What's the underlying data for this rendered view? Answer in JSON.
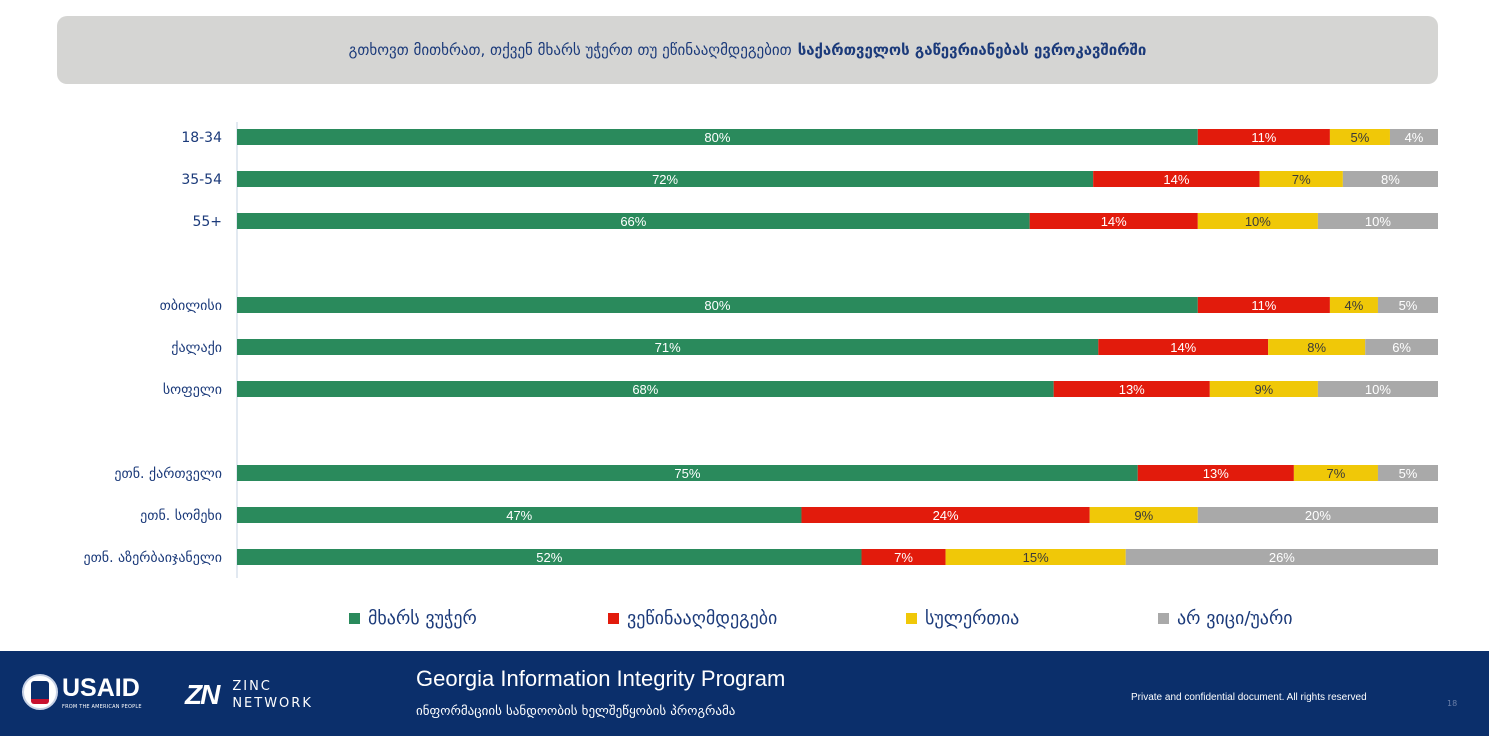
{
  "title": {
    "regular": "გთხოვთ მითხრათ, თქვენ მხარს უჭერთ თუ ეწინააღმდეგებით",
    "bold": "საქართველოს გაწევრიანებას ევროკავშირში"
  },
  "chart_data": {
    "type": "bar",
    "orientation": "horizontal-stacked-100",
    "categories": [
      "18-34",
      "35-54",
      "55+",
      "თბილისი",
      "ქალაქი",
      "სოფელი",
      "ეთნ. ქართველი",
      "ეთნ. სომეხი",
      "ეთნ. აზერბაიჯანელი"
    ],
    "groups": [
      [
        0,
        1,
        2
      ],
      [
        3,
        4,
        5
      ],
      [
        6,
        7,
        8
      ]
    ],
    "series": [
      {
        "name": "მხარს ვუჭერ",
        "color": "#2a8a5c",
        "values": [
          80,
          72,
          66,
          80,
          71,
          68,
          75,
          47,
          52
        ]
      },
      {
        "name": "ვეწინააღმდეგები",
        "color": "#e21b0c",
        "values": [
          11,
          14,
          14,
          11,
          14,
          13,
          13,
          24,
          7
        ]
      },
      {
        "name": "სულერთია",
        "color": "#f0c808",
        "values": [
          5,
          7,
          10,
          4,
          8,
          9,
          7,
          9,
          15
        ]
      },
      {
        "name": "არ ვიცი/უარი",
        "color": "#a9a9a9",
        "values": [
          4,
          8,
          10,
          5,
          6,
          10,
          5,
          20,
          26
        ]
      }
    ],
    "value_suffix": "%",
    "legend_position": "bottom"
  },
  "footer": {
    "usaid": "USAID",
    "usaid_tagline": "FROM THE AMERICAN PEOPLE",
    "zinc_line1": "ZINC",
    "zinc_line2": "NETWORK",
    "program_en": "Georgia Information Integrity Program",
    "program_ka": "ინფორმაციის სანდოობის ხელშეწყობის პროგრამა",
    "confidential": "Private and confidential document. All rights reserved",
    "page_number": "18"
  }
}
